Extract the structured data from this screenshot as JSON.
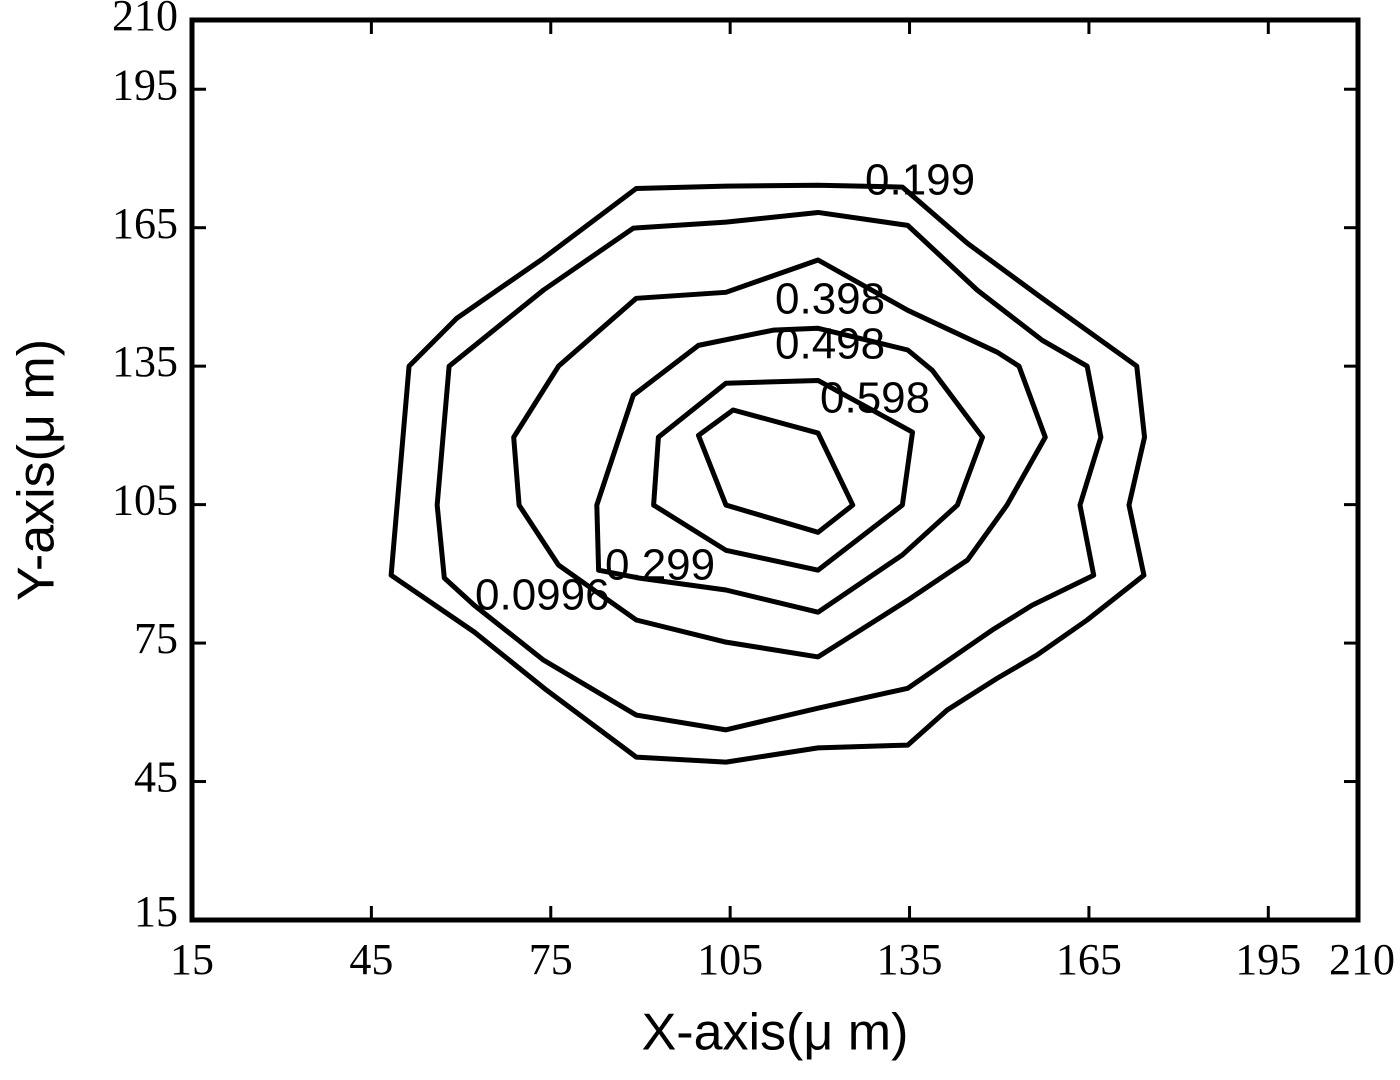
{
  "chart_data": {
    "type": "contour",
    "x_label": "X-axis(μ m)",
    "y_label": "Y-axis(μ m)",
    "xlim": [
      15,
      210
    ],
    "ylim": [
      15,
      210
    ],
    "xticks": [
      15,
      45,
      75,
      105,
      135,
      165,
      195,
      210
    ],
    "yticks": [
      15,
      45,
      75,
      105,
      135,
      165,
      195,
      210
    ],
    "color": "#000000",
    "contours": [
      {
        "level": 0.0996,
        "x": [
          48.3,
          51.3,
          59.3,
          73.8,
          89.3,
          104.3,
          119.7,
          133.8,
          144.7,
          157.2,
          173,
          174.3,
          171.7,
          174.2,
          164.7,
          156.3,
          149.7,
          141.3,
          134.7,
          119.7,
          104.3,
          89.3,
          74.3,
          62.2
        ],
        "y": [
          89.7,
          135,
          145.4,
          158.4,
          173.5,
          174,
          174.2,
          173.8,
          161.6,
          149.7,
          135,
          119.6,
          104.9,
          89.7,
          80,
          72.4,
          67.4,
          60.5,
          52.9,
          52.3,
          49.2,
          50.3,
          64.8,
          77.4
        ]
      },
      {
        "level": 0.199,
        "x": [
          57.2,
          56,
          58,
          73.8,
          88.8,
          104.3,
          119.7,
          134.7,
          146.3,
          157.2,
          164.7,
          167,
          163.5,
          165.8,
          155.5,
          148.8,
          134.7,
          119.7,
          104.3,
          89.3,
          73.8,
          62.2
        ],
        "y": [
          89.1,
          104.9,
          135,
          151.5,
          164.9,
          166.2,
          168.3,
          165.5,
          151.5,
          140.6,
          135,
          119.6,
          104.9,
          89.7,
          83.2,
          77.8,
          65.2,
          60.9,
          56.2,
          59.4,
          71.3,
          83.2
        ]
      },
      {
        "level": 0.299,
        "x": [
          89.3,
          76.3,
          69.7,
          68.8,
          76.3,
          89.3,
          104.3,
          119.7,
          134.7,
          149.7,
          153.3,
          157.7,
          151.3,
          144.7,
          134.7,
          119.7,
          104.3
        ],
        "y": [
          80,
          91.9,
          104.9,
          119.6,
          135,
          149.7,
          151,
          158,
          147.1,
          138,
          135,
          119.6,
          104.9,
          93,
          84.3,
          72,
          75.2
        ]
      },
      {
        "level": 0.398,
        "x": [
          83,
          82.7,
          88.8,
          99.7,
          112.2,
          119.7,
          134.7,
          138.8,
          147.2,
          143,
          133.8,
          119.7,
          104.3,
          89.7
        ],
        "y": [
          90.8,
          104.9,
          128.7,
          139.5,
          142.8,
          143.2,
          138.5,
          134.1,
          119.6,
          104.9,
          94.1,
          81.7,
          86.5,
          89.1
        ]
      },
      {
        "level": 0.498,
        "x": [
          92.2,
          93,
          104.3,
          119.7,
          135.5,
          133.8,
          119.7,
          104.3
        ],
        "y": [
          104.9,
          119.6,
          131.3,
          131.9,
          120.7,
          104.9,
          90.8,
          95.1
        ]
      },
      {
        "level": 0.598,
        "x": [
          99.7,
          105.5,
          119.7,
          125.5,
          119.7,
          104.3
        ],
        "y": [
          120,
          125.5,
          120.5,
          104.9,
          99,
          104.9
        ]
      }
    ]
  }
}
